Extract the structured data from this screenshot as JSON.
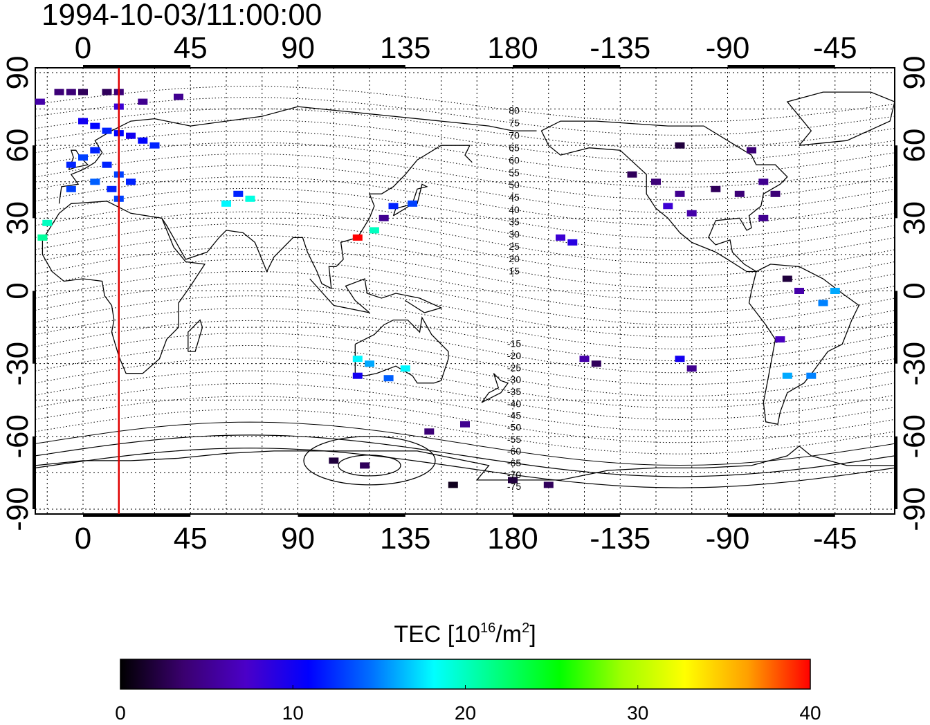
{
  "title": "1994-10-03/11:00:00",
  "colorbar": {
    "label_main": "TEC  [10",
    "label_sup1": "16",
    "label_mid": "/m",
    "label_sup2": "2",
    "label_end": "]",
    "min": 0,
    "max": 40,
    "ticks": [
      "0",
      "10",
      "20",
      "30",
      "40"
    ],
    "colors": [
      "#000000",
      "#3a006e",
      "#4b00c8",
      "#0000ff",
      "#0070ff",
      "#00ffff",
      "#00ff80",
      "#00ff00",
      "#a0ff00",
      "#ffff00",
      "#ffa000",
      "#ff0000"
    ]
  },
  "axes": {
    "x_ticks": [
      "0",
      "45",
      "90",
      "135",
      "180",
      "-135",
      "-90",
      "-45"
    ],
    "y_ticks_left": [
      "90",
      "60",
      "30",
      "0",
      "-30",
      "-60",
      "-90"
    ],
    "y_ticks_right": [
      "90",
      "60",
      "30",
      "0",
      "-30",
      "-60",
      "-90"
    ],
    "x_range": [
      -20,
      340
    ],
    "y_range": [
      -92,
      92
    ]
  },
  "contour_labels": [
    "80",
    "75",
    "70",
    "65",
    "60",
    "55",
    "50",
    "45",
    "40",
    "35",
    "30",
    "25",
    "20",
    "15",
    "-15",
    "-20",
    "-25",
    "-30",
    "-35",
    "-40",
    "-45",
    "-50",
    "-55",
    "-60",
    "-65",
    "-70",
    "-75"
  ],
  "terminator_lon": 15,
  "chart_data": {
    "type": "heatmap",
    "title": "1994-10-03/11:00:00",
    "colorbar_label": "TEC [10^16/m^2]",
    "colorbar_range": [
      0,
      40
    ],
    "points": [
      {
        "lon": -10,
        "lat": 82,
        "tec": 4
      },
      {
        "lon": -5,
        "lat": 82,
        "tec": 4
      },
      {
        "lon": 0,
        "lat": 82,
        "tec": 3
      },
      {
        "lon": 10,
        "lat": 82,
        "tec": 3
      },
      {
        "lon": 15,
        "lat": 82,
        "tec": 4
      },
      {
        "lon": 25,
        "lat": 78,
        "tec": 5
      },
      {
        "lon": 40,
        "lat": 80,
        "tec": 5
      },
      {
        "lon": -18,
        "lat": 78,
        "tec": 6
      },
      {
        "lon": 15,
        "lat": 76,
        "tec": 8
      },
      {
        "lon": 0,
        "lat": 70,
        "tec": 10
      },
      {
        "lon": 5,
        "lat": 68,
        "tec": 11
      },
      {
        "lon": 10,
        "lat": 66,
        "tec": 12
      },
      {
        "lon": 15,
        "lat": 65,
        "tec": 11
      },
      {
        "lon": 20,
        "lat": 64,
        "tec": 10
      },
      {
        "lon": 25,
        "lat": 62,
        "tec": 11
      },
      {
        "lon": 30,
        "lat": 60,
        "tec": 12
      },
      {
        "lon": 5,
        "lat": 58,
        "tec": 12
      },
      {
        "lon": 0,
        "lat": 55,
        "tec": 13
      },
      {
        "lon": -5,
        "lat": 52,
        "tec": 12
      },
      {
        "lon": 10,
        "lat": 52,
        "tec": 12
      },
      {
        "lon": 15,
        "lat": 48,
        "tec": 13
      },
      {
        "lon": 20,
        "lat": 45,
        "tec": 12
      },
      {
        "lon": 5,
        "lat": 45,
        "tec": 14
      },
      {
        "lon": -5,
        "lat": 42,
        "tec": 13
      },
      {
        "lon": 12,
        "lat": 42,
        "tec": 12
      },
      {
        "lon": 15,
        "lat": 38,
        "tec": 13
      },
      {
        "lon": -15,
        "lat": 28,
        "tec": 20
      },
      {
        "lon": -17,
        "lat": 22,
        "tec": 21
      },
      {
        "lon": 60,
        "lat": 36,
        "tec": 18
      },
      {
        "lon": 70,
        "lat": 38,
        "tec": 19
      },
      {
        "lon": 65,
        "lat": 40,
        "tec": 12
      },
      {
        "lon": 130,
        "lat": 35,
        "tec": 12
      },
      {
        "lon": 138,
        "lat": 36,
        "tec": 13
      },
      {
        "lon": 122,
        "lat": 25,
        "tec": 20
      },
      {
        "lon": 115,
        "lat": 22,
        "tec": 40
      },
      {
        "lon": 126,
        "lat": 30,
        "tec": 5
      },
      {
        "lon": 115,
        "lat": -28,
        "tec": 18
      },
      {
        "lon": 120,
        "lat": -30,
        "tec": 16
      },
      {
        "lon": 135,
        "lat": -32,
        "tec": 18
      },
      {
        "lon": 128,
        "lat": -36,
        "tec": 14
      },
      {
        "lon": 115,
        "lat": -35,
        "tec": 10
      },
      {
        "lon": 118,
        "lat": -72,
        "tec": 3
      },
      {
        "lon": 105,
        "lat": -70,
        "tec": 2
      },
      {
        "lon": 155,
        "lat": -80,
        "tec": 1
      },
      {
        "lon": 180,
        "lat": -78,
        "tec": 2
      },
      {
        "lon": 195,
        "lat": -80,
        "tec": 3
      },
      {
        "lon": 145,
        "lat": -58,
        "tec": 4
      },
      {
        "lon": 160,
        "lat": -55,
        "tec": 5
      },
      {
        "lon": 200,
        "lat": 22,
        "tec": 8
      },
      {
        "lon": 205,
        "lat": 20,
        "tec": 9
      },
      {
        "lon": 210,
        "lat": -28,
        "tec": 6
      },
      {
        "lon": 215,
        "lat": -30,
        "tec": 3
      },
      {
        "lon": 250,
        "lat": -28,
        "tec": 10
      },
      {
        "lon": 255,
        "lat": -32,
        "tec": 5
      },
      {
        "lon": 230,
        "lat": 48,
        "tec": 3
      },
      {
        "lon": 240,
        "lat": 45,
        "tec": 4
      },
      {
        "lon": 250,
        "lat": 40,
        "tec": 5
      },
      {
        "lon": 245,
        "lat": 35,
        "tec": 8
      },
      {
        "lon": 255,
        "lat": 32,
        "tec": 6
      },
      {
        "lon": 265,
        "lat": 42,
        "tec": 3
      },
      {
        "lon": 275,
        "lat": 40,
        "tec": 4
      },
      {
        "lon": 285,
        "lat": 45,
        "tec": 5
      },
      {
        "lon": 290,
        "lat": 40,
        "tec": 4
      },
      {
        "lon": 250,
        "lat": 60,
        "tec": 2
      },
      {
        "lon": 280,
        "lat": 58,
        "tec": 4
      },
      {
        "lon": 285,
        "lat": 30,
        "tec": 5
      },
      {
        "lon": 295,
        "lat": 5,
        "tec": 2
      },
      {
        "lon": 300,
        "lat": 0,
        "tec": 6
      },
      {
        "lon": 310,
        "lat": -5,
        "tec": 15
      },
      {
        "lon": 315,
        "lat": 0,
        "tec": 16
      },
      {
        "lon": 292,
        "lat": -20,
        "tec": 7
      },
      {
        "lon": 295,
        "lat": -35,
        "tec": 16
      },
      {
        "lon": 305,
        "lat": -35,
        "tec": 15
      }
    ]
  }
}
